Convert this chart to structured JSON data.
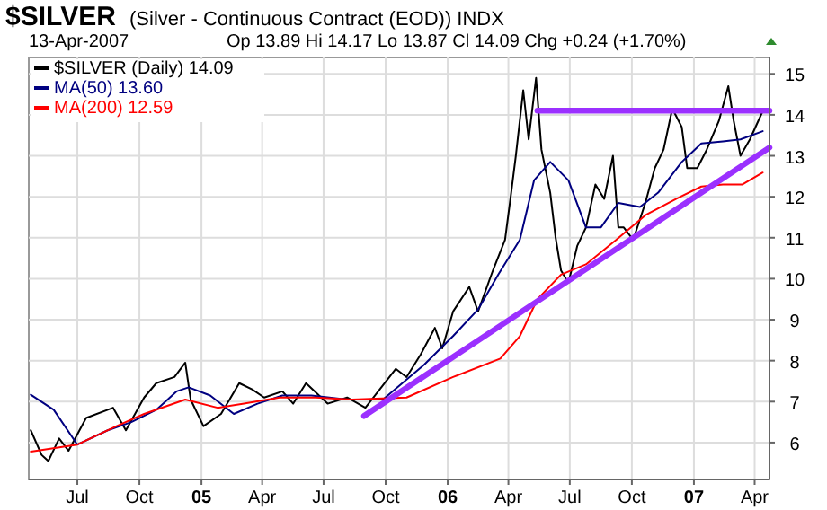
{
  "chart_data": {
    "type": "line",
    "title": "$SILVER",
    "subtitle": "(Silver - Continuous Contract (EOD)) INDX",
    "annotations": [
      "13-Apr-2007",
      "Op 13.89 Hi 14.17 Lo 13.87 Cl 14.09 Chg +0.24 (+1.70%)"
    ],
    "xlim": [
      "2004-04-20",
      "2007-04-23"
    ],
    "xticks": [
      {
        "value": "2004-07-01",
        "label": "Jul"
      },
      {
        "value": "2004-10-01",
        "label": "Oct"
      },
      {
        "value": "2005-01-01",
        "label": "05"
      },
      {
        "value": "2005-04-01",
        "label": "Apr"
      },
      {
        "value": "2005-07-01",
        "label": "Jul"
      },
      {
        "value": "2005-10-01",
        "label": "Oct"
      },
      {
        "value": "2006-01-01",
        "label": "06"
      },
      {
        "value": "2006-04-01",
        "label": "Apr"
      },
      {
        "value": "2006-07-01",
        "label": "Jul"
      },
      {
        "value": "2006-10-01",
        "label": "Oct"
      },
      {
        "value": "2007-01-01",
        "label": "07"
      },
      {
        "value": "2007-04-01",
        "label": "Apr"
      }
    ],
    "ylim": [
      5.1,
      15.4
    ],
    "yticks": [
      6,
      7,
      8,
      9,
      10,
      11,
      12,
      13,
      14,
      15
    ],
    "grid": true,
    "legend": "top left",
    "series": [
      {
        "name": "$SILVER (Daily) 14.09",
        "color": "#000000",
        "x": [
          "2004-04-23",
          "2004-05-09",
          "2004-05-19",
          "2004-06-04",
          "2004-06-18",
          "2004-07-14",
          "2004-08-23",
          "2004-09-11",
          "2004-10-08",
          "2004-10-26",
          "2004-11-22",
          "2004-12-08",
          "2004-12-16",
          "2005-01-04",
          "2005-01-30",
          "2005-02-26",
          "2005-03-17",
          "2005-04-04",
          "2005-05-01",
          "2005-05-17",
          "2005-06-05",
          "2005-07-07",
          "2005-08-05",
          "2005-09-01",
          "2005-09-27",
          "2005-10-16",
          "2005-11-01",
          "2005-11-22",
          "2005-12-13",
          "2005-12-24",
          "2006-01-09",
          "2006-02-02",
          "2006-02-15",
          "2006-03-09",
          "2006-03-27",
          "2006-04-04",
          "2006-04-12",
          "2006-04-23",
          "2006-05-01",
          "2006-05-12",
          "2006-05-20",
          "2006-06-02",
          "2006-06-10",
          "2006-06-18",
          "2006-06-29",
          "2006-07-12",
          "2006-07-25",
          "2006-08-08",
          "2006-08-21",
          "2006-09-03",
          "2006-09-11",
          "2006-09-19",
          "2006-10-03",
          "2006-10-21",
          "2006-11-04",
          "2006-11-17",
          "2006-11-30",
          "2006-12-14",
          "2006-12-22",
          "2007-01-06",
          "2007-01-20",
          "2007-02-07",
          "2007-02-21",
          "2007-03-01",
          "2007-03-11",
          "2007-03-25",
          "2007-04-13"
        ],
        "values": [
          6.3,
          5.7,
          5.55,
          6.1,
          5.8,
          6.6,
          6.85,
          6.3,
          7.1,
          7.45,
          7.6,
          7.95,
          7.05,
          6.4,
          6.7,
          7.45,
          7.3,
          7.1,
          7.25,
          6.95,
          7.45,
          6.95,
          7.1,
          6.85,
          7.4,
          7.8,
          7.6,
          8.15,
          8.8,
          8.3,
          9.2,
          9.8,
          9.2,
          10.2,
          10.95,
          11.95,
          13.0,
          14.6,
          13.4,
          14.9,
          13.15,
          12.1,
          11.0,
          10.2,
          9.9,
          10.8,
          11.25,
          12.3,
          11.95,
          13.0,
          11.25,
          11.25,
          10.95,
          11.85,
          12.7,
          13.15,
          14.15,
          13.7,
          12.7,
          12.7,
          13.15,
          13.85,
          14.7,
          13.85,
          13.0,
          13.4,
          14.09
        ]
      },
      {
        "name": "MA(50) 13.60",
        "color": "#000080",
        "x": [
          "2004-04-23",
          "2004-05-27",
          "2004-07-01",
          "2004-08-15",
          "2004-09-19",
          "2004-10-26",
          "2004-11-25",
          "2004-12-13",
          "2005-01-14",
          "2005-02-18",
          "2005-03-25",
          "2005-05-01",
          "2005-06-13",
          "2005-08-05",
          "2005-09-27",
          "2005-11-27",
          "2006-01-09",
          "2006-02-15",
          "2006-03-17",
          "2006-04-18",
          "2006-05-09",
          "2006-06-02",
          "2006-06-29",
          "2006-07-25",
          "2006-08-16",
          "2006-09-11",
          "2006-10-13",
          "2006-11-09",
          "2006-12-14",
          "2007-01-12",
          "2007-02-13",
          "2007-03-11",
          "2007-04-13"
        ],
        "values": [
          7.17,
          6.8,
          5.95,
          6.3,
          6.5,
          6.8,
          7.25,
          7.35,
          7.15,
          6.7,
          6.95,
          7.15,
          7.15,
          7.05,
          7.05,
          7.9,
          8.6,
          9.25,
          10.1,
          10.95,
          12.4,
          12.85,
          12.4,
          11.25,
          11.25,
          11.85,
          11.75,
          12.1,
          12.85,
          13.3,
          13.35,
          13.4,
          13.6
        ]
      },
      {
        "name": "MA(200) 12.59",
        "color": "#ff0000",
        "x": [
          "2004-04-23",
          "2004-07-01",
          "2004-08-28",
          "2004-10-08",
          "2004-12-08",
          "2005-01-25",
          "2005-03-05",
          "2005-04-27",
          "2005-06-19",
          "2005-08-12",
          "2005-11-01",
          "2006-01-09",
          "2006-03-20",
          "2006-04-18",
          "2006-05-14",
          "2006-06-18",
          "2006-07-25",
          "2006-09-08",
          "2006-10-21",
          "2006-12-06",
          "2007-01-12",
          "2007-02-13",
          "2007-03-14",
          "2007-04-13"
        ],
        "values": [
          5.78,
          5.95,
          6.4,
          6.7,
          7.05,
          6.85,
          6.95,
          7.1,
          7.1,
          7.05,
          7.1,
          7.6,
          8.05,
          8.6,
          9.5,
          10.1,
          10.35,
          10.95,
          11.55,
          11.95,
          12.25,
          12.3,
          12.3,
          12.59
        ]
      },
      {
        "color": "#9b30ff",
        "x": [
          "2005-08-30",
          "2007-04-23"
        ],
        "values": [
          6.65,
          13.2
        ]
      },
      {
        "color": "#9b30ff",
        "x": [
          "2006-05-14",
          "2007-04-23"
        ],
        "values": [
          14.1,
          14.1
        ]
      }
    ]
  }
}
